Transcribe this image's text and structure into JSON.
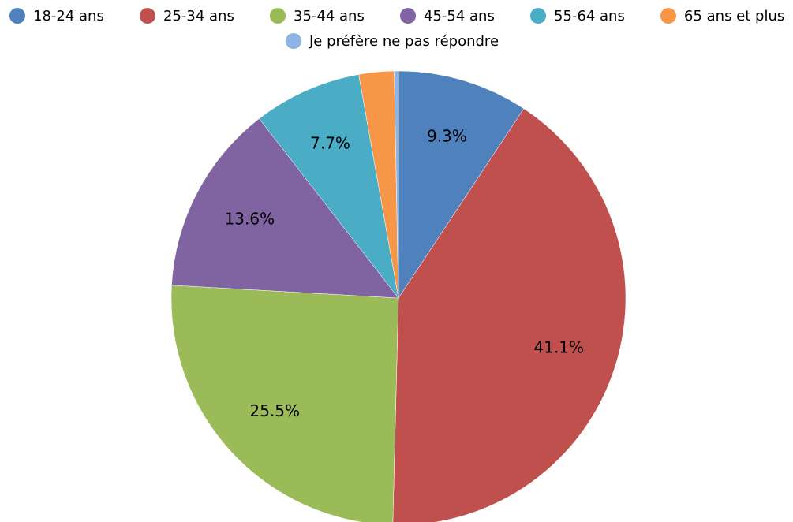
{
  "chart_data": {
    "type": "pie",
    "categories": [
      "18-24 ans",
      "25-34 ans",
      "35-44 ans",
      "45-54 ans",
      "55-64 ans",
      "65 ans et plus",
      "Je préfère ne pas répondre"
    ],
    "values": [
      9.3,
      41.1,
      25.5,
      13.6,
      7.7,
      2.5,
      0.3
    ],
    "value_labels": [
      "9.3%",
      "41.1%",
      "25.5%",
      "13.6%",
      "7.7%",
      null,
      null
    ],
    "colors": [
      "#4f81bd",
      "#c0504d",
      "#9bbb59",
      "#8064a2",
      "#4bacc6",
      "#f79646",
      "#8eb4e3"
    ],
    "legend": "top"
  }
}
